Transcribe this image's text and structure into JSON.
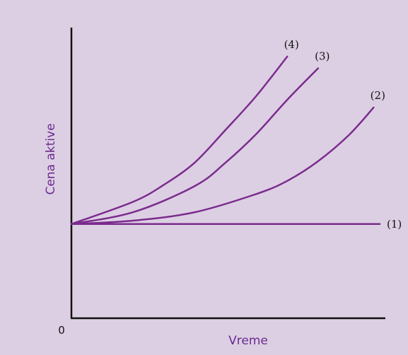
{
  "colors": {
    "background": "#dccfe3",
    "axis": "#111111",
    "curve": "#7b2b8e",
    "axis_title": "#6b2a8f"
  },
  "chart_data": {
    "type": "line",
    "xlabel": "Vreme",
    "ylabel": "Cena aktive",
    "origin_label": "0",
    "grid": false,
    "legend": "none",
    "xlim": [
      0,
      10
    ],
    "ylim": [
      0,
      10
    ],
    "series": [
      {
        "name": "(1)",
        "x": [
          0,
          10
        ],
        "y": [
          3.6,
          3.6
        ]
      },
      {
        "name": "(2)",
        "x": [
          0,
          2,
          4,
          6,
          7,
          8,
          9,
          9.8
        ],
        "y": [
          3.6,
          3.73,
          4.05,
          4.75,
          5.25,
          6.0,
          7.0,
          8.05
        ]
      },
      {
        "name": "(3)",
        "x": [
          0,
          2,
          4,
          5,
          6,
          7,
          8
        ],
        "y": [
          3.6,
          4.05,
          5.05,
          5.95,
          7.05,
          8.35,
          9.55
        ]
      },
      {
        "name": "(4)",
        "x": [
          0,
          2,
          3,
          4,
          5,
          6,
          7
        ],
        "y": [
          3.6,
          4.45,
          5.1,
          5.95,
          7.2,
          8.5,
          10.0
        ]
      }
    ]
  }
}
